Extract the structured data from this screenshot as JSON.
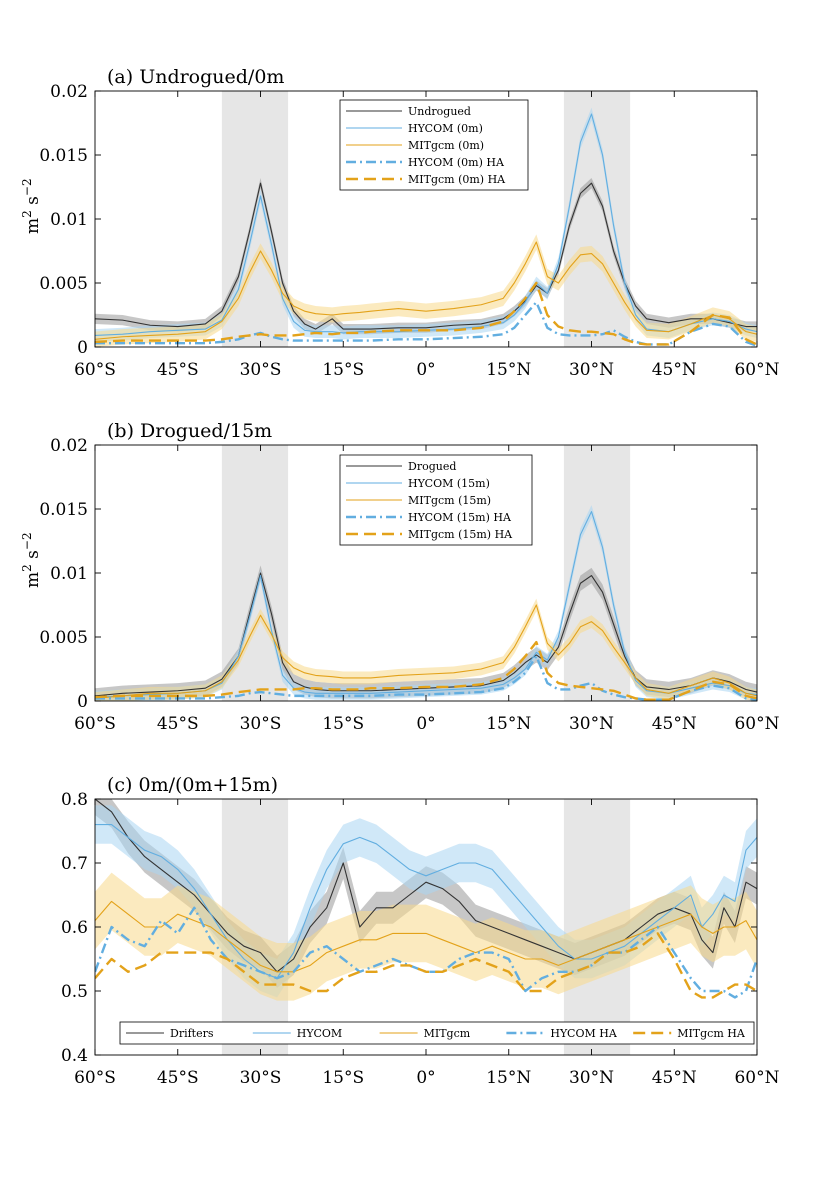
{
  "colors": {
    "black_series": "#333333",
    "hycom": "#62aee0",
    "mitgcm": "#e3a21a",
    "hycom_band": "#a9d6f2",
    "mitgcm_band": "#f7d98a",
    "obs_band": "#999999",
    "shade": "#e6e6e6",
    "axis": "#000000"
  },
  "shaded_regions_lat": [
    [
      -37,
      -25
    ],
    [
      25,
      37
    ]
  ],
  "chart_data": [
    {
      "type": "line",
      "title": "(a) Undrogued/0m",
      "ylabel": "m$^2$ s$^{-2}$",
      "ylabel_parts": {
        "m": "m",
        "m_exp": "2",
        "s": "s",
        "s_exp": "−2"
      },
      "xlim": [
        -60,
        60
      ],
      "ylim": [
        0,
        0.02
      ],
      "xticks": [
        -60,
        -45,
        -30,
        -15,
        0,
        15,
        30,
        45,
        60
      ],
      "xtick_labels": [
        "60°S",
        "45°S",
        "30°S",
        "15°S",
        "0°",
        "15°N",
        "30°N",
        "45°N",
        "60°N"
      ],
      "yticks": [
        0,
        0.005,
        0.01,
        0.015,
        0.02
      ],
      "ytick_labels": [
        "0",
        "0.005",
        "0.01",
        "0.015",
        "0.02"
      ],
      "legend_position": "top-center",
      "x": [
        -60,
        -55,
        -50,
        -45,
        -40,
        -37,
        -34,
        -32,
        -30,
        -28,
        -26,
        -24,
        -22,
        -20,
        -17,
        -15,
        -12,
        -10,
        -5,
        0,
        5,
        10,
        14,
        16,
        18,
        20,
        22,
        24,
        26,
        28,
        30,
        32,
        34,
        36,
        38,
        40,
        44,
        48,
        52,
        55,
        58,
        60
      ],
      "series": [
        {
          "name": "Undrogued",
          "style": "solid",
          "color": "black_series",
          "values": [
            0.0022,
            0.0021,
            0.0017,
            0.0016,
            0.0018,
            0.0028,
            0.0055,
            0.009,
            0.0128,
            0.009,
            0.005,
            0.0028,
            0.0018,
            0.0014,
            0.0022,
            0.0014,
            0.0014,
            0.0014,
            0.0015,
            0.0015,
            0.0017,
            0.0018,
            0.0022,
            0.0028,
            0.0036,
            0.0048,
            0.0042,
            0.006,
            0.0095,
            0.012,
            0.0128,
            0.011,
            0.0075,
            0.005,
            0.0032,
            0.0022,
            0.0019,
            0.0022,
            0.0022,
            0.0019,
            0.0016,
            0.0016
          ],
          "band": 0.0004
        },
        {
          "name": "HYCOM (0m)",
          "style": "solid",
          "color": "hycom",
          "values": [
            0.0009,
            0.001,
            0.0012,
            0.0013,
            0.0014,
            0.0021,
            0.0045,
            0.008,
            0.0118,
            0.008,
            0.0038,
            0.002,
            0.0013,
            0.0012,
            0.0012,
            0.0011,
            0.0012,
            0.0012,
            0.0012,
            0.0013,
            0.0014,
            0.0016,
            0.0019,
            0.0025,
            0.0035,
            0.005,
            0.0042,
            0.0065,
            0.011,
            0.016,
            0.0182,
            0.015,
            0.0095,
            0.005,
            0.0025,
            0.0014,
            0.0012,
            0.0018,
            0.0022,
            0.002,
            0.0014,
            0.0012
          ],
          "band": 0.0005
        },
        {
          "name": "MITgcm (0m)",
          "style": "solid",
          "color": "mitgcm",
          "values": [
            0.0006,
            0.0008,
            0.0009,
            0.001,
            0.0012,
            0.002,
            0.0038,
            0.0058,
            0.0075,
            0.006,
            0.0042,
            0.0032,
            0.0028,
            0.0026,
            0.0025,
            0.0026,
            0.0027,
            0.0028,
            0.003,
            0.0028,
            0.003,
            0.0033,
            0.0038,
            0.005,
            0.0065,
            0.0082,
            0.0055,
            0.005,
            0.0062,
            0.0072,
            0.0073,
            0.0065,
            0.005,
            0.0035,
            0.0022,
            0.0013,
            0.0012,
            0.0018,
            0.0025,
            0.0022,
            0.0012,
            0.001
          ],
          "band": 0.0006
        },
        {
          "name": "HYCOM (0m) HA",
          "style": "dashdot",
          "color": "hycom",
          "values": [
            0.0003,
            0.0003,
            0.0003,
            0.0003,
            0.0003,
            0.0004,
            0.0006,
            0.0009,
            0.0011,
            0.0008,
            0.0006,
            0.0005,
            0.0005,
            0.0005,
            0.0005,
            0.0005,
            0.0005,
            0.0005,
            0.0006,
            0.0006,
            0.0007,
            0.0008,
            0.001,
            0.0015,
            0.0025,
            0.0035,
            0.0015,
            0.001,
            0.0009,
            0.0009,
            0.0009,
            0.001,
            0.0013,
            0.0008,
            0.0004,
            0.0002,
            0.0002,
            0.0012,
            0.0018,
            0.0016,
            0.0004,
            0.0001
          ],
          "band": 0
        },
        {
          "name": "MITgcm (0m) HA",
          "style": "dashed",
          "color": "mitgcm",
          "values": [
            0.0004,
            0.0005,
            0.0005,
            0.0005,
            0.0005,
            0.0006,
            0.0008,
            0.0009,
            0.001,
            0.0009,
            0.0009,
            0.0009,
            0.001,
            0.0011,
            0.001,
            0.0011,
            0.0011,
            0.0012,
            0.0013,
            0.0013,
            0.0013,
            0.0015,
            0.002,
            0.0028,
            0.0038,
            0.005,
            0.0025,
            0.0016,
            0.0013,
            0.0012,
            0.0012,
            0.0011,
            0.001,
            0.0006,
            0.0003,
            0.0002,
            0.0002,
            0.0012,
            0.0025,
            0.0023,
            0.0006,
            0.0002
          ],
          "band": 0
        }
      ]
    },
    {
      "type": "line",
      "title": "(b) Drogued/15m",
      "ylabel": "m$^2$ s$^{-2}$",
      "ylabel_parts": {
        "m": "m",
        "m_exp": "2",
        "s": "s",
        "s_exp": "−2"
      },
      "xlim": [
        -60,
        60
      ],
      "ylim": [
        0,
        0.02
      ],
      "xticks": [
        -60,
        -45,
        -30,
        -15,
        0,
        15,
        30,
        45,
        60
      ],
      "xtick_labels": [
        "60°S",
        "45°S",
        "30°S",
        "15°S",
        "0°",
        "15°N",
        "30°N",
        "45°N",
        "60°N"
      ],
      "yticks": [
        0,
        0.005,
        0.01,
        0.015,
        0.02
      ],
      "ytick_labels": [
        "0",
        "0.005",
        "0.01",
        "0.015",
        "0.02"
      ],
      "legend_position": "top-center",
      "x": [
        -60,
        -55,
        -50,
        -45,
        -40,
        -37,
        -34,
        -32,
        -30,
        -28,
        -26,
        -24,
        -22,
        -20,
        -17,
        -15,
        -12,
        -10,
        -5,
        0,
        5,
        10,
        14,
        16,
        18,
        20,
        22,
        24,
        26,
        28,
        30,
        32,
        34,
        36,
        38,
        40,
        44,
        48,
        52,
        55,
        58,
        60
      ],
      "series": [
        {
          "name": "Drogued",
          "style": "solid",
          "color": "black_series",
          "values": [
            0.0004,
            0.0006,
            0.0007,
            0.0008,
            0.001,
            0.0017,
            0.0035,
            0.0068,
            0.01,
            0.0068,
            0.003,
            0.0015,
            0.0011,
            0.0009,
            0.0008,
            0.0008,
            0.0008,
            0.0008,
            0.0009,
            0.001,
            0.0011,
            0.0012,
            0.0016,
            0.0022,
            0.003,
            0.0036,
            0.003,
            0.0042,
            0.0068,
            0.0092,
            0.0098,
            0.0085,
            0.006,
            0.0035,
            0.0018,
            0.0011,
            0.0009,
            0.0012,
            0.0018,
            0.0015,
            0.0009,
            0.0007
          ],
          "band": 0.0006
        },
        {
          "name": "HYCOM (15m)",
          "style": "solid",
          "color": "hycom",
          "values": [
            0.0003,
            0.0004,
            0.0005,
            0.0006,
            0.0008,
            0.0014,
            0.0035,
            0.0065,
            0.0098,
            0.0055,
            0.002,
            0.001,
            0.0007,
            0.0006,
            0.0006,
            0.0006,
            0.0006,
            0.0006,
            0.0007,
            0.0008,
            0.0009,
            0.001,
            0.0013,
            0.0018,
            0.0025,
            0.0038,
            0.0032,
            0.005,
            0.009,
            0.013,
            0.0148,
            0.012,
            0.0075,
            0.0038,
            0.0016,
            0.0008,
            0.0006,
            0.001,
            0.0014,
            0.0012,
            0.0006,
            0.0005
          ],
          "band": 0.0005
        },
        {
          "name": "MITgcm (15m)",
          "style": "solid",
          "color": "mitgcm",
          "values": [
            0.0002,
            0.0004,
            0.0006,
            0.0006,
            0.0008,
            0.0015,
            0.0032,
            0.005,
            0.0067,
            0.0052,
            0.0034,
            0.0026,
            0.0022,
            0.002,
            0.0019,
            0.0018,
            0.0018,
            0.0018,
            0.002,
            0.0021,
            0.0022,
            0.0025,
            0.003,
            0.0042,
            0.0058,
            0.0075,
            0.0045,
            0.0036,
            0.0045,
            0.0058,
            0.0062,
            0.0055,
            0.0042,
            0.003,
            0.0018,
            0.0009,
            0.0006,
            0.0012,
            0.0018,
            0.0014,
            0.0006,
            0.0004
          ],
          "band": 0.0005
        },
        {
          "name": "HYCOM (15m) HA",
          "style": "dashdot",
          "color": "hycom",
          "values": [
            0.0002,
            0.0002,
            0.0002,
            0.0002,
            0.0002,
            0.0003,
            0.0004,
            0.0006,
            0.0007,
            0.0006,
            0.0005,
            0.0004,
            0.0004,
            0.0004,
            0.0004,
            0.0004,
            0.0004,
            0.0004,
            0.0005,
            0.0005,
            0.0006,
            0.0007,
            0.001,
            0.0015,
            0.0022,
            0.0035,
            0.0014,
            0.0009,
            0.0009,
            0.0012,
            0.0014,
            0.0008,
            0.0005,
            0.0003,
            0.0002,
            0.0001,
            0.0001,
            0.0008,
            0.0012,
            0.001,
            0.0002,
            0.0001
          ],
          "band": 0
        },
        {
          "name": "MITgcm (15m) HA",
          "style": "dashed",
          "color": "mitgcm",
          "values": [
            0.0003,
            0.0004,
            0.0004,
            0.0004,
            0.0004,
            0.0005,
            0.0007,
            0.0008,
            0.0009,
            0.0009,
            0.0009,
            0.0009,
            0.001,
            0.001,
            0.0009,
            0.0009,
            0.0009,
            0.001,
            0.001,
            0.0011,
            0.0011,
            0.0013,
            0.0018,
            0.0025,
            0.0035,
            0.0046,
            0.0022,
            0.0014,
            0.0012,
            0.0011,
            0.001,
            0.0009,
            0.0008,
            0.0005,
            0.0002,
            0.0001,
            0.0001,
            0.0008,
            0.0015,
            0.0013,
            0.0004,
            0.0002
          ],
          "band": 0
        }
      ]
    },
    {
      "type": "line",
      "title": "(c) 0m/(0m+15m)",
      "ylabel": "",
      "xlim": [
        -60,
        60
      ],
      "ylim": [
        0.4,
        0.8
      ],
      "xticks": [
        -60,
        -45,
        -30,
        -15,
        0,
        15,
        30,
        45,
        60
      ],
      "xtick_labels": [
        "60°S",
        "45°S",
        "30°S",
        "15°S",
        "0°",
        "15°N",
        "30°N",
        "45°N",
        "60°N"
      ],
      "yticks": [
        0.4,
        0.5,
        0.6,
        0.7,
        0.8
      ],
      "ytick_labels": [
        "0.4",
        "0.5",
        "0.6",
        "0.7",
        "0.8"
      ],
      "legend_position": "bottom-center",
      "x": [
        -60,
        -57,
        -54,
        -51,
        -48,
        -45,
        -42,
        -39,
        -36,
        -33,
        -30,
        -27,
        -24,
        -21,
        -18,
        -15,
        -12,
        -9,
        -6,
        -3,
        0,
        3,
        6,
        9,
        12,
        15,
        18,
        21,
        24,
        27,
        30,
        33,
        36,
        39,
        42,
        45,
        48,
        50,
        52,
        54,
        56,
        58,
        60
      ],
      "series": [
        {
          "name": "Drifters",
          "style": "solid",
          "color": "black_series",
          "values": [
            0.8,
            0.78,
            0.74,
            0.71,
            0.69,
            0.67,
            0.65,
            0.62,
            0.59,
            0.57,
            0.56,
            0.53,
            0.55,
            0.6,
            0.63,
            0.7,
            0.6,
            0.63,
            0.63,
            0.65,
            0.67,
            0.66,
            0.64,
            0.61,
            0.6,
            0.59,
            0.58,
            0.57,
            0.56,
            0.55,
            0.56,
            0.57,
            0.58,
            0.6,
            0.62,
            0.63,
            0.62,
            0.58,
            0.56,
            0.63,
            0.6,
            0.67,
            0.66
          ],
          "band": 0.025
        },
        {
          "name": "HYCOM",
          "style": "solid",
          "color": "hycom",
          "values": [
            0.76,
            0.76,
            0.74,
            0.72,
            0.71,
            0.69,
            0.66,
            0.62,
            0.58,
            0.55,
            0.53,
            0.52,
            0.56,
            0.63,
            0.69,
            0.73,
            0.74,
            0.73,
            0.71,
            0.69,
            0.68,
            0.69,
            0.7,
            0.7,
            0.69,
            0.66,
            0.63,
            0.6,
            0.57,
            0.55,
            0.55,
            0.56,
            0.57,
            0.59,
            0.61,
            0.63,
            0.65,
            0.6,
            0.62,
            0.65,
            0.64,
            0.72,
            0.74
          ],
          "band": 0.03
        },
        {
          "name": "MITgcm",
          "style": "solid",
          "color": "mitgcm",
          "values": [
            0.61,
            0.64,
            0.62,
            0.6,
            0.6,
            0.62,
            0.61,
            0.6,
            0.58,
            0.56,
            0.54,
            0.53,
            0.53,
            0.54,
            0.56,
            0.57,
            0.58,
            0.58,
            0.59,
            0.59,
            0.59,
            0.58,
            0.57,
            0.56,
            0.57,
            0.56,
            0.55,
            0.55,
            0.54,
            0.55,
            0.56,
            0.57,
            0.58,
            0.59,
            0.6,
            0.61,
            0.62,
            0.6,
            0.59,
            0.6,
            0.6,
            0.61,
            0.58
          ],
          "band": 0.045
        },
        {
          "name": "HYCOM HA",
          "style": "dashdot",
          "color": "hycom",
          "values": [
            0.53,
            0.6,
            0.58,
            0.57,
            0.61,
            0.59,
            0.63,
            0.58,
            0.55,
            0.54,
            0.53,
            0.52,
            0.53,
            0.56,
            0.57,
            0.55,
            0.53,
            0.54,
            0.55,
            0.54,
            0.53,
            0.53,
            0.55,
            0.56,
            0.56,
            0.55,
            0.5,
            0.52,
            0.53,
            0.53,
            0.54,
            0.56,
            0.56,
            0.58,
            0.6,
            0.56,
            0.52,
            0.5,
            0.5,
            0.5,
            0.49,
            0.5,
            0.55
          ],
          "band": 0
        },
        {
          "name": "MITgcm HA",
          "style": "dashed",
          "color": "mitgcm",
          "values": [
            0.52,
            0.55,
            0.53,
            0.54,
            0.56,
            0.56,
            0.56,
            0.56,
            0.55,
            0.53,
            0.51,
            0.51,
            0.51,
            0.5,
            0.5,
            0.52,
            0.53,
            0.53,
            0.54,
            0.54,
            0.53,
            0.53,
            0.54,
            0.55,
            0.54,
            0.53,
            0.5,
            0.5,
            0.52,
            0.53,
            0.54,
            0.56,
            0.56,
            0.57,
            0.59,
            0.55,
            0.5,
            0.49,
            0.49,
            0.5,
            0.51,
            0.51,
            0.5
          ],
          "band": 0
        }
      ]
    }
  ]
}
